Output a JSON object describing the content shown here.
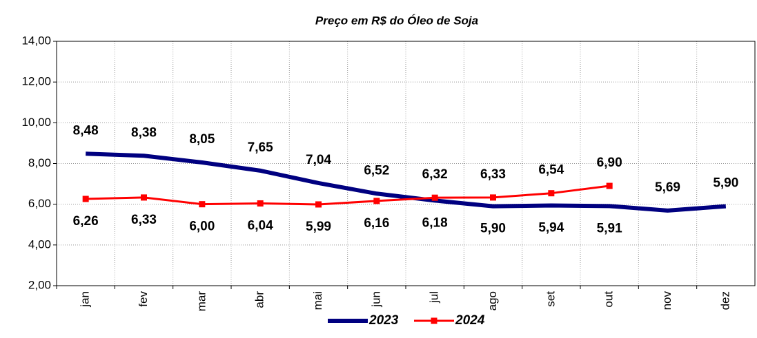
{
  "chart_data": {
    "type": "line",
    "title": "Preço em R$ do Óleo de Soja",
    "categories": [
      "jan",
      "fev",
      "mar",
      "abr",
      "mai",
      "jun",
      "jul",
      "ago",
      "set",
      "out",
      "nov",
      "dez"
    ],
    "series": [
      {
        "name": "2023",
        "color": "#000080",
        "values": [
          8.48,
          8.38,
          8.05,
          7.65,
          7.04,
          6.52,
          6.18,
          5.9,
          5.94,
          5.91,
          5.69,
          5.9
        ],
        "value_labels": [
          "8,48",
          "8,38",
          "8,05",
          "7,65",
          "7,04",
          "6,52",
          "6,18",
          "5,90",
          "5,94",
          "5,91",
          "5,69",
          "5,90"
        ]
      },
      {
        "name": "2024",
        "color": "#ff0000",
        "values": [
          6.26,
          6.33,
          6.0,
          6.04,
          5.99,
          6.16,
          6.32,
          6.33,
          6.54,
          6.9,
          null,
          null
        ],
        "value_labels": [
          "6,26",
          "6,33",
          "6,00",
          "6,04",
          "5,99",
          "6,16",
          "6,32",
          "6,33",
          "6,54",
          "6,90",
          null,
          null
        ]
      }
    ],
    "ylim": [
      2,
      14
    ],
    "yticks": [
      {
        "value": 2,
        "label": "2,00"
      },
      {
        "value": 4,
        "label": "4,00"
      },
      {
        "value": 6,
        "label": "6,00"
      },
      {
        "value": 8,
        "label": "8,00"
      },
      {
        "value": 10,
        "label": "10,00"
      },
      {
        "value": 12,
        "label": "12,00"
      },
      {
        "value": 14,
        "label": "14,00"
      }
    ],
    "grid": true,
    "legend": "bottom"
  }
}
